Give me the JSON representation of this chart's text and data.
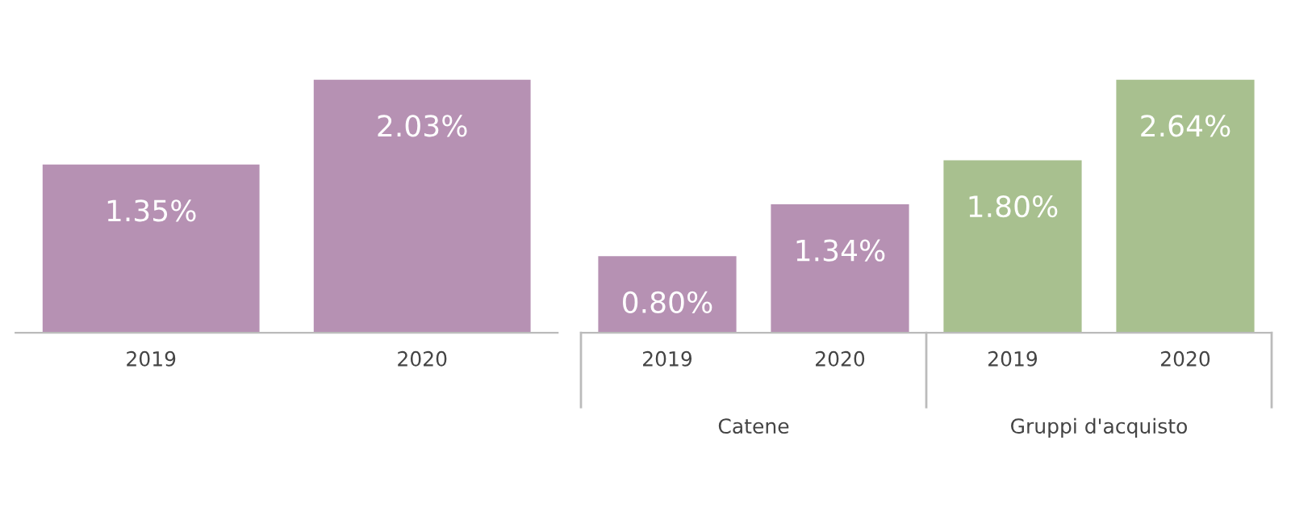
{
  "chart_data": [
    {
      "type": "bar",
      "categories": [
        "2019",
        "2020"
      ],
      "values": [
        1.35,
        2.03
      ],
      "colors": [
        "#b691b3",
        "#b691b3"
      ],
      "value_labels": [
        "1.35%",
        "2.03%"
      ]
    },
    {
      "type": "bar",
      "categories": [
        "2019",
        "2020",
        "2019",
        "2020"
      ],
      "values": [
        0.8,
        1.34,
        1.8,
        2.64
      ],
      "colors": [
        "#b691b3",
        "#b691b3",
        "#a8c08f",
        "#a8c08f"
      ],
      "value_labels": [
        "0.80%",
        "1.34%",
        "1.80%",
        "2.64%"
      ],
      "annotations": [
        "Catene",
        "Gruppi d'acquisto"
      ]
    }
  ]
}
